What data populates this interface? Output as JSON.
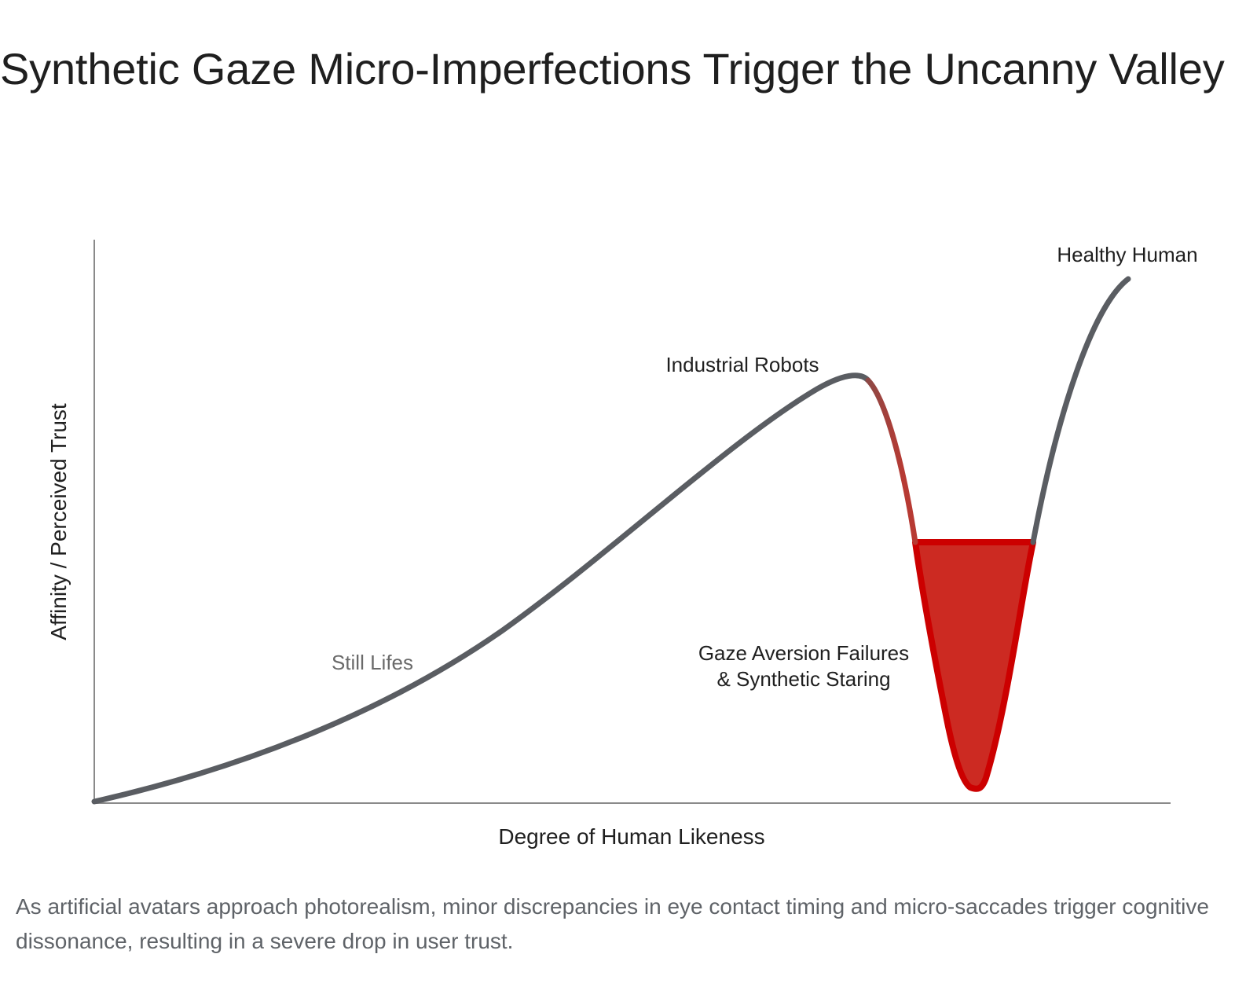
{
  "title": "Synthetic Gaze Micro-Imperfections Trigger the Uncanny Valley",
  "caption": "As artificial avatars approach photorealism, minor discrepancies in eye contact timing and micro-saccades trigger cognitive dissonance, resulting in a severe drop in user trust.",
  "diagram": {
    "x_axis_label": "Degree of Human Likeness",
    "y_axis_label": "Affinity / Perceived Trust",
    "annotations": {
      "still_lifes": "Still Lifes",
      "industrial_robots": "Industrial Robots",
      "healthy_human": "Healthy Human",
      "valley_line1": "Gaze Aversion Failures",
      "valley_line2": "& Synthetic Staring"
    },
    "colors": {
      "curve": "#5a5d62",
      "axis": "#8a8a8a",
      "valley_fill": "#cc2a22",
      "valley_stroke": "#cc0000",
      "label_dark": "#1f1f1f",
      "label_muted": "#6a6a6a",
      "caption": "#5f6368"
    }
  }
}
